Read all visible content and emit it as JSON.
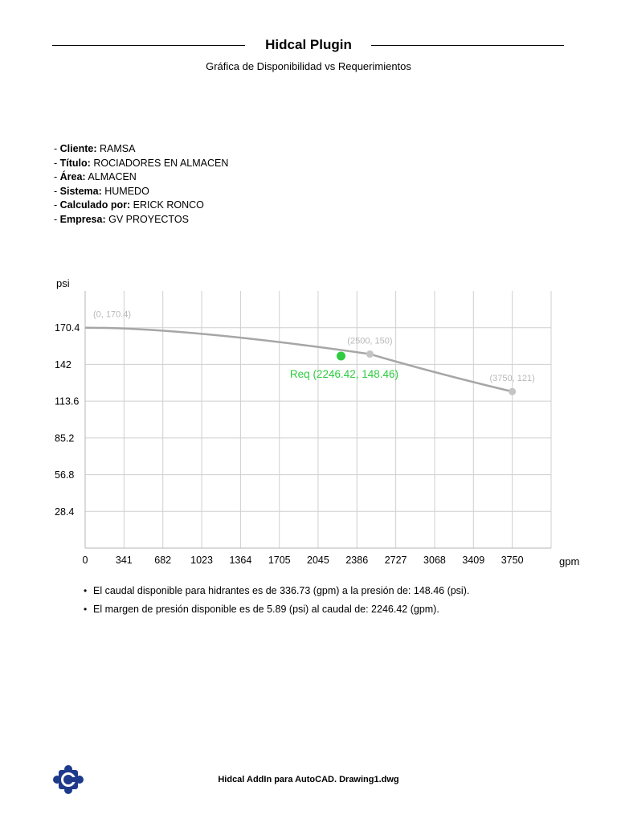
{
  "header": {
    "title": "Hidcal Plugin",
    "subtitle": "Gráfica de Disponibilidad vs Requerimientos"
  },
  "info": [
    {
      "label": "Cliente:",
      "value": "RAMSA"
    },
    {
      "label": "Título:",
      "value": "ROCIADORES EN ALMACEN"
    },
    {
      "label": "Área:",
      "value": "ALMACEN"
    },
    {
      "label": "Sistema:",
      "value": "HUMEDO"
    },
    {
      "label": "Calculado por:",
      "value": "ERICK RONCO"
    },
    {
      "label": "Empresa:",
      "value": "GV PROYECTOS"
    }
  ],
  "chart_data": {
    "type": "line",
    "xlabel": "gpm",
    "ylabel": "psi",
    "x_ticks": [
      0,
      341,
      682,
      1023,
      1364,
      1705,
      2045,
      2386,
      2727,
      3068,
      3409,
      3750
    ],
    "y_ticks": [
      28.4,
      56.8,
      85.2,
      113.6,
      142,
      170.4
    ],
    "xlim": [
      0,
      4091
    ],
    "ylim": [
      0,
      198.8
    ],
    "grid": true,
    "series": [
      {
        "points": [
          {
            "x": 0,
            "y": 170.4,
            "label": "(0, 170.4)"
          },
          {
            "x": 2500,
            "y": 150,
            "label": "(2500, 150)"
          },
          {
            "x": 3750,
            "y": 121,
            "label": "(3750, 121)"
          }
        ],
        "color": "#a6a6a6"
      }
    ],
    "required_point": {
      "x": 2246.42,
      "y": 148.46,
      "label": "Req (2246.42, 148.46)",
      "color": "#2ecc40"
    }
  },
  "notes": [
    "El caudal disponible para hidrantes es de 336.73 (gpm) a la presión de: 148.46 (psi).",
    "El margen de presión disponible es de 5.89 (psi) al caudal de: 2246.42 (gpm)."
  ],
  "footer": {
    "text": "Hidcal AddIn para AutoCAD. Drawing1.dwg",
    "logo_icon": "puzzle-gear-logo-icon",
    "logo_color": "#1e3a8a"
  }
}
